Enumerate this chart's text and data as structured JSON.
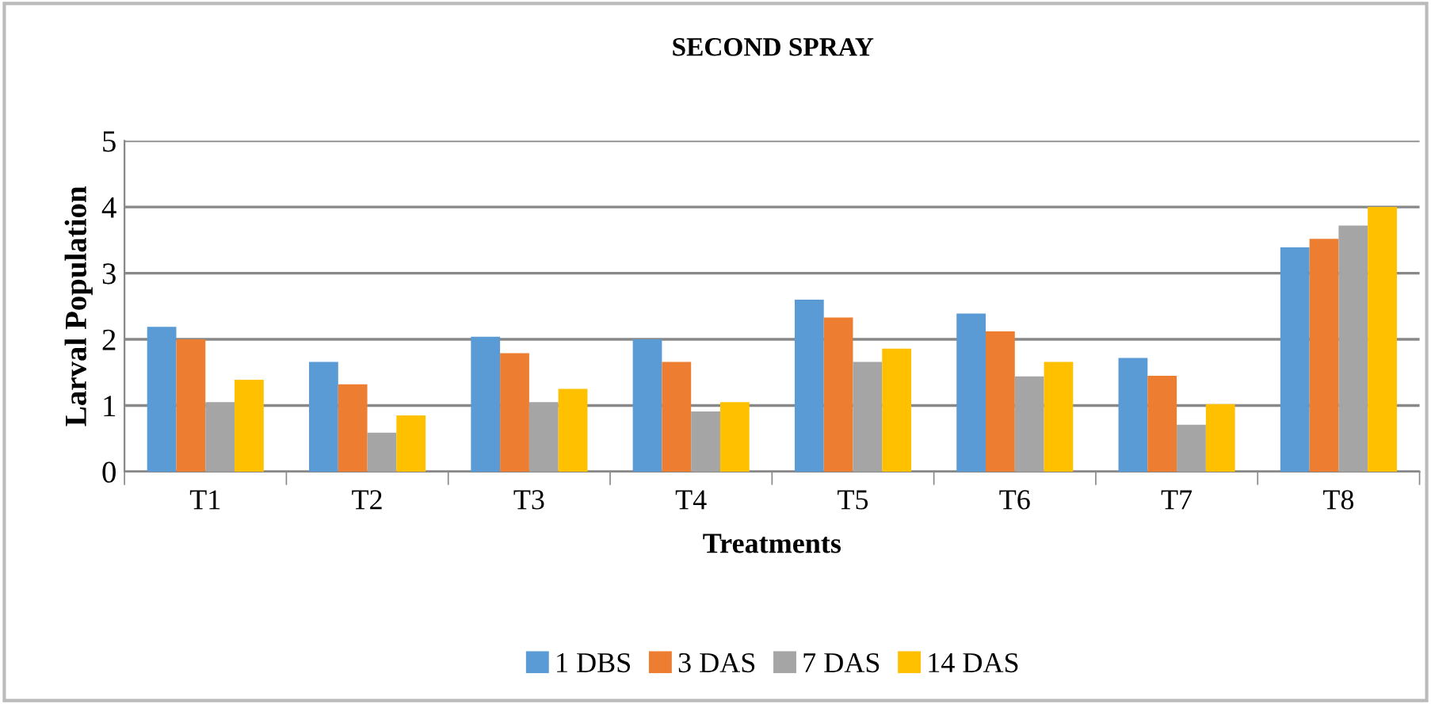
{
  "chart_data": {
    "type": "bar",
    "title": "SECOND SPRAY",
    "xlabel": "Treatments",
    "ylabel": "Larval Population",
    "categories": [
      "T1",
      "T2",
      "T3",
      "T4",
      "T5",
      "T6",
      "T7",
      "T8"
    ],
    "series": [
      {
        "name": "1 DBS",
        "color": "#5b9bd5",
        "values": [
          2.19,
          1.66,
          2.04,
          2.0,
          2.6,
          2.39,
          1.72,
          3.39
        ]
      },
      {
        "name": "3 DAS",
        "color": "#ed7d31",
        "values": [
          2.0,
          1.32,
          1.79,
          1.66,
          2.33,
          2.12,
          1.45,
          3.52
        ]
      },
      {
        "name": "7 DAS",
        "color": "#a5a5a5",
        "values": [
          1.05,
          0.59,
          1.05,
          0.91,
          1.66,
          1.44,
          0.71,
          3.72
        ]
      },
      {
        "name": "14 DAS",
        "color": "#ffc000",
        "values": [
          1.39,
          0.85,
          1.25,
          1.05,
          1.86,
          1.66,
          1.02,
          4.0
        ]
      }
    ],
    "ylim": [
      0,
      5
    ],
    "yticks": [
      0,
      1,
      2,
      3,
      4,
      5
    ],
    "grid": "y",
    "legend": "bottom"
  }
}
